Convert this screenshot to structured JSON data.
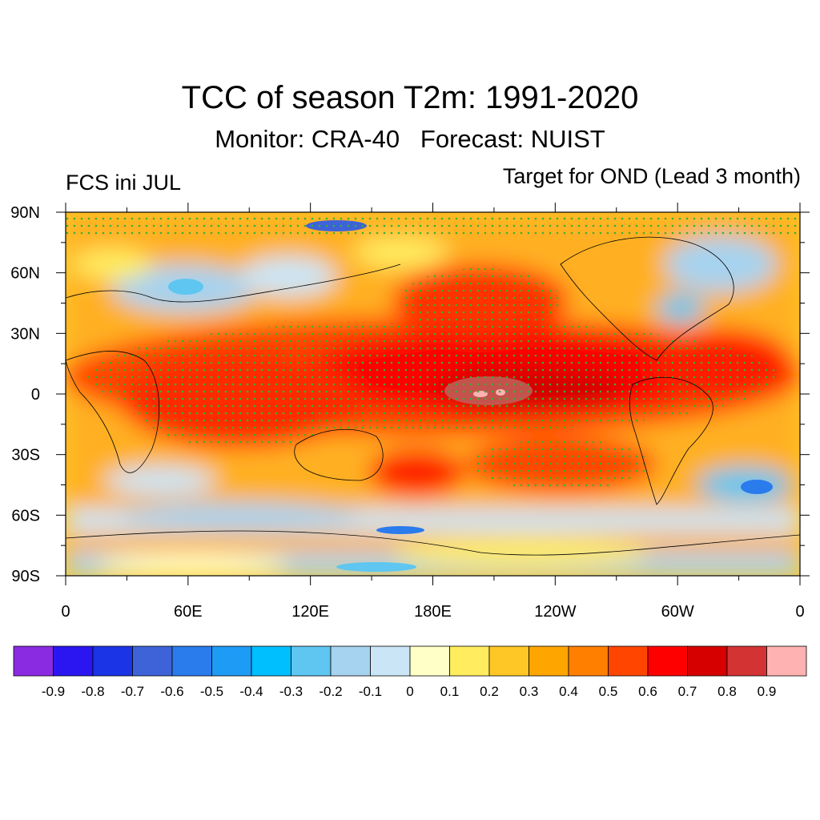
{
  "title": "TCC of season T2m: 1991-2020",
  "subtitle": "Monitor: CRA-40   Forecast: NUIST",
  "left_label": "FCS ini JUL",
  "right_label": "Target for OND (Lead 3 month)",
  "lat_ticks": [
    "90N",
    "60N",
    "30N",
    "0",
    "30S",
    "60S",
    "90S"
  ],
  "lon_ticks": [
    "0",
    "60E",
    "120E",
    "180E",
    "120W",
    "60W",
    "0"
  ],
  "colorbar": {
    "colors": [
      "#8a2be2",
      "#2b16f2",
      "#1a34e6",
      "#3e63d8",
      "#2a7bec",
      "#1e9bf5",
      "#00bfff",
      "#5ec6f0",
      "#a6d3ef",
      "#cae6f6",
      "#ffffc8",
      "#ffec5f",
      "#ffc726",
      "#ffa500",
      "#ff7f00",
      "#ff4500",
      "#ff0000",
      "#d60000",
      "#d43333",
      "#ffb2b2"
    ],
    "labels": [
      "-0.9",
      "-0.8",
      "-0.7",
      "-0.6",
      "-0.5",
      "-0.4",
      "-0.3",
      "-0.2",
      "-0.1",
      "0",
      "0.1",
      "0.2",
      "0.3",
      "0.4",
      "0.5",
      "0.6",
      "0.7",
      "0.8",
      "0.9"
    ]
  }
}
